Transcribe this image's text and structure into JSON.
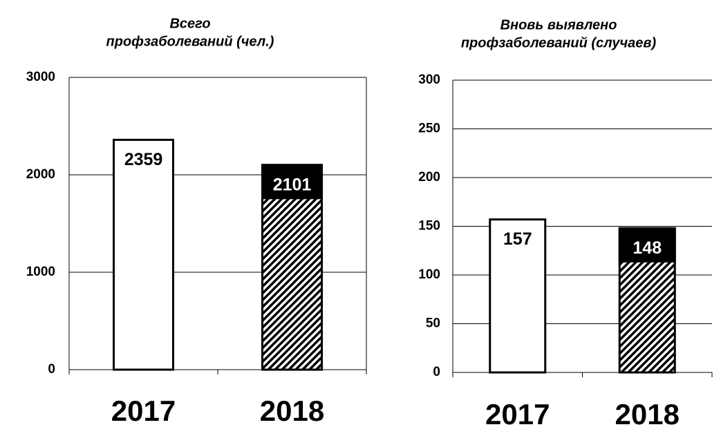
{
  "chart_data": [
    {
      "type": "bar",
      "title": [
        "Всего",
        "профзаболеваний (чел.)"
      ],
      "categories": [
        "2017",
        "2018"
      ],
      "values": [
        2359,
        2101
      ],
      "fills": [
        "white",
        "hatched"
      ],
      "ylim": [
        0,
        3000
      ],
      "yticks": [
        0,
        1000,
        2000,
        3000
      ],
      "grid": true
    },
    {
      "type": "bar",
      "title": [
        "Вновь выявлено",
        "профзаболеваний (случаев)"
      ],
      "categories": [
        "2017",
        "2018"
      ],
      "values": [
        157,
        148
      ],
      "fills": [
        "white",
        "hatched"
      ],
      "ylim": [
        0,
        300
      ],
      "yticks": [
        0,
        50,
        100,
        150,
        200,
        250,
        300
      ],
      "grid": true
    }
  ]
}
